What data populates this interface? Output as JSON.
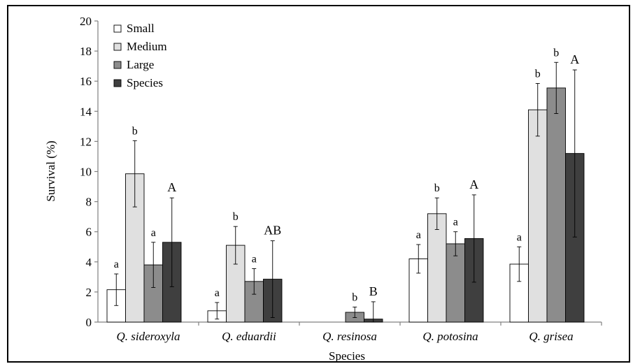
{
  "chart_data": {
    "type": "bar",
    "title": "",
    "xlabel": "Species",
    "ylabel": "Survival (%)",
    "ylim": [
      0,
      20
    ],
    "yticks": [
      0,
      2,
      4,
      6,
      8,
      10,
      12,
      14,
      16,
      18,
      20
    ],
    "grid": false,
    "legend_position": "top-left",
    "categories": [
      "Q. sideroxyla",
      "Q. eduardii",
      "Q. resinosa",
      "Q. potosina",
      "Q. grisea"
    ],
    "series": [
      {
        "name": "Small",
        "color": "#ffffff",
        "values": [
          2.15,
          0.75,
          0,
          4.2,
          3.85
        ],
        "errors": [
          1.05,
          0.55,
          0,
          0.95,
          1.15
        ],
        "labels": [
          "a",
          "a",
          "",
          "a",
          "a"
        ]
      },
      {
        "name": "Medium",
        "color": "#e0e0e0",
        "values": [
          9.85,
          5.1,
          0,
          7.2,
          14.1
        ],
        "errors": [
          2.2,
          1.25,
          0,
          1.05,
          1.75
        ],
        "labels": [
          "b",
          "b",
          "",
          "b",
          "b"
        ]
      },
      {
        "name": "Large",
        "color": "#8c8c8c",
        "values": [
          3.8,
          2.7,
          0.65,
          5.2,
          15.55
        ],
        "errors": [
          1.5,
          0.85,
          0.35,
          0.8,
          1.7
        ],
        "labels": [
          "a",
          "a",
          "b",
          "a",
          "b"
        ]
      },
      {
        "name": "Species",
        "color": "#3f3f3f",
        "values": [
          5.3,
          2.85,
          0.2,
          5.55,
          11.2
        ],
        "errors": [
          2.95,
          2.55,
          1.15,
          2.9,
          5.55
        ],
        "labels": [
          "A",
          "AB",
          "B",
          "A",
          "A"
        ]
      }
    ]
  }
}
